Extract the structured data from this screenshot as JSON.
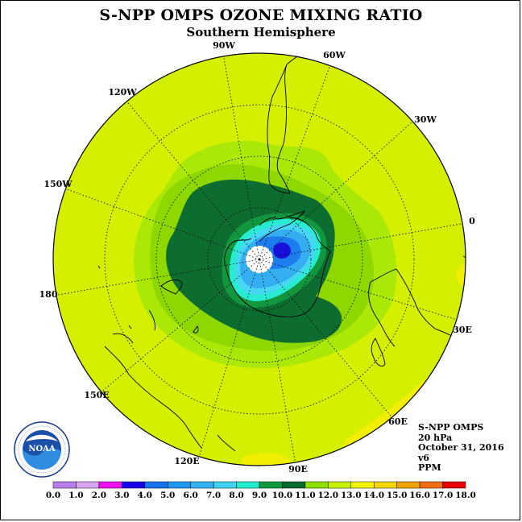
{
  "title": "S-NPP OMPS OZONE MIXING RATIO",
  "subtitle": "Southern Hemisphere",
  "info": {
    "satellite": "S-NPP OMPS",
    "level": "20 hPa",
    "date": "October 31, 2016",
    "version": "v6",
    "units": "PPM"
  },
  "logo": {
    "text": "NOAA",
    "ring_text": "NATIONAL OCEANIC AND ATMOSPHERIC ADMINISTRATION · U.S. DEPARTMENT OF COMMERCE"
  },
  "longitude_labels": [
    "90W",
    "60W",
    "30W",
    "0",
    "30E",
    "60E",
    "90E",
    "120E",
    "150E",
    "180",
    "150W",
    "120W"
  ],
  "colorbar": {
    "ticks": [
      "0.0",
      "1.0",
      "2.0",
      "3.0",
      "4.0",
      "5.0",
      "6.0",
      "7.0",
      "8.0",
      "9.0",
      "10.0",
      "11.0",
      "12.0",
      "13.0",
      "14.0",
      "15.0",
      "16.0",
      "17.0",
      "18.0"
    ],
    "colors": [
      "#b57ee8",
      "#d8a6ef",
      "#ee10ee",
      "#1800e8",
      "#1774ee",
      "#1e98f0",
      "#34b4f2",
      "#3ed4f2",
      "#20ecd0",
      "#0e9a3c",
      "#066a2e",
      "#8ee000",
      "#c6f200",
      "#f4f400",
      "#f4d800",
      "#f0a400",
      "#f26c14",
      "#e80000",
      "#7e4e3c"
    ]
  },
  "colors": {
    "background_field": "#d4f000",
    "outer_ring": "#abe808",
    "mid_ring": "#8ed800",
    "dark_green": "#0d6d31",
    "green": "#12963e",
    "teal": "#28ecd2",
    "cyan": "#46d8f2",
    "light_blue": "#34aef0",
    "blue": "#1d7cee",
    "deep_blue": "#1a10dc",
    "yellow": "#f2ee00"
  }
}
